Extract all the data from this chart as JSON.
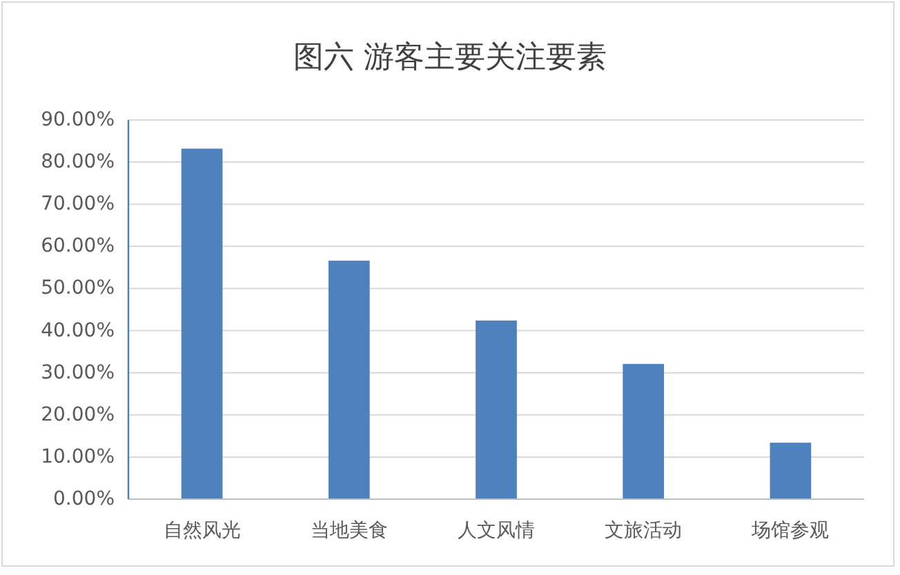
{
  "chart_data": {
    "type": "bar",
    "title": "图六 游客主要关注要素",
    "categories": [
      "自然风光",
      "当地美食",
      "人文风情",
      "文旅活动",
      "场馆参观"
    ],
    "values": [
      83.2,
      56.6,
      42.4,
      32.1,
      13.4
    ],
    "color": "#4f81bd",
    "ylim": [
      0,
      90
    ],
    "yticks": [
      {
        "value": 0,
        "label": "0.00%"
      },
      {
        "value": 10,
        "label": "10.00%"
      },
      {
        "value": 20,
        "label": "20.00%"
      },
      {
        "value": 30,
        "label": "30.00%"
      },
      {
        "value": 40,
        "label": "40.00%"
      },
      {
        "value": 50,
        "label": "50.00%"
      },
      {
        "value": 60,
        "label": "60.00%"
      },
      {
        "value": 70,
        "label": "70.00%"
      },
      {
        "value": 80,
        "label": "80.00%"
      },
      {
        "value": 90,
        "label": "90.00%"
      }
    ],
    "grid": "y"
  }
}
